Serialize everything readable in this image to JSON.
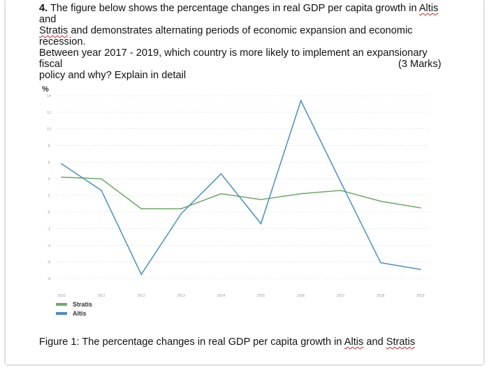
{
  "question": {
    "number": "4.",
    "line1_pre": " The figure below shows the percentage changes in real GDP per capita growth in ",
    "country_a": "Altis",
    "line1_post": " and",
    "country_b": "Stratis",
    "line2_post": " and demonstrates alternating periods of economic expansion and economic recession.",
    "line3": "Between year 2017 - 2019, which country is more likely to implement an expansionary fiscal",
    "line4": "policy and why? Explain in detail"
  },
  "marks": "(3 Marks)",
  "caption": {
    "pre": "Figure 1: The percentage changes in real GDP per capita growth in ",
    "country_a": "Altis",
    "mid": " and ",
    "country_b": "Stratis"
  },
  "chart_data": {
    "type": "line",
    "ylabel": "%",
    "x": [
      "2010",
      "2011",
      "2012",
      "2013",
      "2014",
      "2015",
      "2016",
      "2017",
      "2018",
      "2019"
    ],
    "yticks": [
      14,
      12,
      10,
      8,
      6,
      4,
      2,
      0,
      -2,
      -4,
      -6,
      -8
    ],
    "ylim": [
      -8,
      14
    ],
    "grid": true,
    "legend_position": "bottom-left",
    "series": [
      {
        "name": "Stratis",
        "color": "#6aaa64",
        "values": [
          4.2,
          4.0,
          0.4,
          0.4,
          2.2,
          1.5,
          2.2,
          2.6,
          1.3,
          0.5
        ]
      },
      {
        "name": "Altis",
        "color": "#4a8fc4",
        "values": [
          5.8,
          2.6,
          -7.5,
          -0.2,
          4.6,
          -1.4,
          13.4,
          3.6,
          -6.1,
          -6.9
        ]
      }
    ]
  }
}
